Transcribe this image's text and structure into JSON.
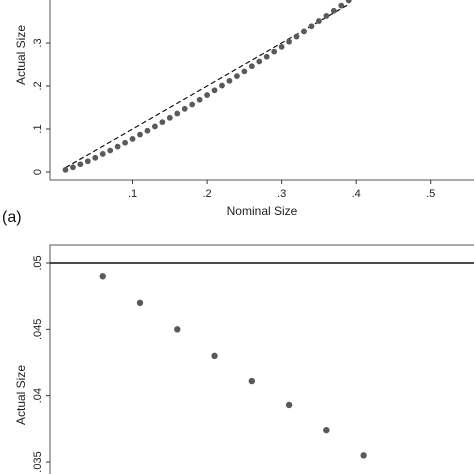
{
  "chart_data": [
    {
      "type": "scatter",
      "panel_label": "(a)",
      "xlabel": "Nominal Size",
      "ylabel": "Actual Size",
      "xlim": [
        0,
        0.55
      ],
      "ylim": [
        0,
        0.4
      ],
      "x_ticks": [
        {
          "value": 0.1,
          "label": ".1"
        },
        {
          "value": 0.2,
          "label": ".2"
        },
        {
          "value": 0.3,
          "label": ".3"
        },
        {
          "value": 0.4,
          "label": ".4"
        },
        {
          "value": 0.5,
          "label": ".5"
        }
      ],
      "y_ticks": [
        {
          "value": 0,
          "label": "0"
        },
        {
          "value": 0.1,
          "label": ".1"
        },
        {
          "value": 0.2,
          "label": ".2"
        },
        {
          "value": 0.3,
          "label": ".3"
        }
      ],
      "reference_line": {
        "style": "dashed",
        "points": [
          [
            0.01,
            0.01
          ],
          [
            0.39,
            0.39
          ]
        ]
      },
      "points": [
        [
          0.01,
          0.005
        ],
        [
          0.02,
          0.011
        ],
        [
          0.03,
          0.018
        ],
        [
          0.04,
          0.025
        ],
        [
          0.05,
          0.033
        ],
        [
          0.06,
          0.042
        ],
        [
          0.07,
          0.05
        ],
        [
          0.08,
          0.059
        ],
        [
          0.09,
          0.068
        ],
        [
          0.1,
          0.077
        ],
        [
          0.11,
          0.087
        ],
        [
          0.12,
          0.096
        ],
        [
          0.13,
          0.106
        ],
        [
          0.14,
          0.116
        ],
        [
          0.15,
          0.126
        ],
        [
          0.16,
          0.136
        ],
        [
          0.17,
          0.147
        ],
        [
          0.18,
          0.157
        ],
        [
          0.19,
          0.168
        ],
        [
          0.2,
          0.179
        ],
        [
          0.21,
          0.19
        ],
        [
          0.22,
          0.201
        ],
        [
          0.23,
          0.212
        ],
        [
          0.24,
          0.223
        ],
        [
          0.25,
          0.234
        ],
        [
          0.26,
          0.246
        ],
        [
          0.27,
          0.257
        ],
        [
          0.28,
          0.268
        ],
        [
          0.29,
          0.28
        ],
        [
          0.3,
          0.291
        ],
        [
          0.31,
          0.303
        ],
        [
          0.32,
          0.315
        ],
        [
          0.33,
          0.327
        ],
        [
          0.34,
          0.339
        ],
        [
          0.35,
          0.351
        ],
        [
          0.36,
          0.363
        ],
        [
          0.37,
          0.375
        ],
        [
          0.38,
          0.387
        ],
        [
          0.39,
          0.399
        ]
      ],
      "point_color": "#5a5a5a",
      "grid": false
    },
    {
      "type": "scatter",
      "ylabel": "Actual Size",
      "xlim": [
        0,
        0.55
      ],
      "ylim": [
        0.035,
        0.05
      ],
      "y_ticks": [
        {
          "value": 0.035,
          "label": ".035"
        },
        {
          "value": 0.04,
          "label": ".04"
        },
        {
          "value": 0.045,
          "label": ".045"
        },
        {
          "value": 0.05,
          "label": ".05"
        }
      ],
      "reference_line": {
        "style": "solid",
        "y": 0.05
      },
      "points": [
        [
          0.06,
          0.049
        ],
        [
          0.11,
          0.047
        ],
        [
          0.16,
          0.045
        ],
        [
          0.21,
          0.043
        ],
        [
          0.26,
          0.0411
        ],
        [
          0.31,
          0.0393
        ],
        [
          0.36,
          0.0374
        ],
        [
          0.41,
          0.0355
        ]
      ],
      "point_color": "#5a5a5a",
      "grid": false
    }
  ]
}
